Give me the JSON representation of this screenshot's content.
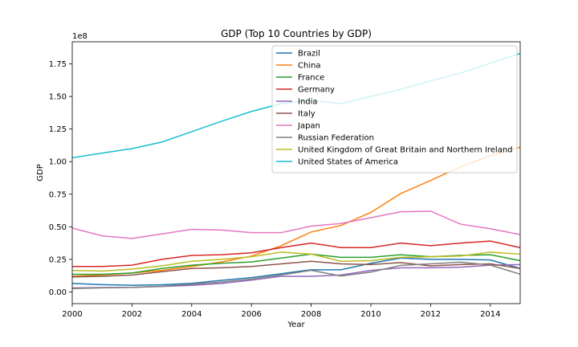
{
  "chart_data": {
    "type": "line",
    "title": "GDP (Top 10 Countries by GDP)",
    "xlabel": "Year",
    "ylabel": "GDP",
    "y_offset_text": "1e8",
    "xlim": [
      2000,
      2015
    ],
    "ylim": [
      -0.09,
      1.92
    ],
    "x_ticks": [
      2000,
      2002,
      2004,
      2006,
      2008,
      2010,
      2012,
      2014
    ],
    "x_tick_labels": [
      "2000",
      "2002",
      "2004",
      "2006",
      "2008",
      "2010",
      "2012",
      "2014"
    ],
    "y_ticks": [
      0.0,
      0.25,
      0.5,
      0.75,
      1.0,
      1.25,
      1.5,
      1.75
    ],
    "y_tick_labels": [
      "0.00",
      "0.25",
      "0.50",
      "0.75",
      "1.00",
      "1.25",
      "1.50",
      "1.75"
    ],
    "grid": false,
    "legend_position": "top-right",
    "x": [
      2000,
      2001,
      2002,
      2003,
      2004,
      2005,
      2006,
      2007,
      2008,
      2009,
      2010,
      2011,
      2012,
      2013,
      2014,
      2015
    ],
    "series": [
      {
        "name": "Brazil",
        "color": "#1f77b4",
        "values": [
          0.065,
          0.056,
          0.051,
          0.055,
          0.066,
          0.089,
          0.11,
          0.14,
          0.17,
          0.17,
          0.22,
          0.26,
          0.25,
          0.25,
          0.245,
          0.18
        ]
      },
      {
        "name": "China",
        "color": "#ff7f0e",
        "values": [
          0.12,
          0.13,
          0.145,
          0.165,
          0.195,
          0.23,
          0.275,
          0.355,
          0.46,
          0.51,
          0.61,
          0.755,
          0.855,
          0.96,
          1.045,
          1.11
        ]
      },
      {
        "name": "France",
        "color": "#2ca02c",
        "values": [
          0.135,
          0.135,
          0.145,
          0.18,
          0.205,
          0.22,
          0.23,
          0.26,
          0.29,
          0.265,
          0.265,
          0.285,
          0.27,
          0.28,
          0.285,
          0.24
        ]
      },
      {
        "name": "Germany",
        "color": "#d62728",
        "values": [
          0.195,
          0.195,
          0.205,
          0.25,
          0.28,
          0.285,
          0.3,
          0.34,
          0.375,
          0.34,
          0.34,
          0.375,
          0.355,
          0.375,
          0.39,
          0.34
        ]
      },
      {
        "name": "India",
        "color": "#9467bd",
        "values": [
          0.03,
          0.033,
          0.035,
          0.042,
          0.05,
          0.065,
          0.09,
          0.12,
          0.12,
          0.13,
          0.165,
          0.185,
          0.185,
          0.19,
          0.205,
          0.21
        ]
      },
      {
        "name": "Italy",
        "color": "#8c564b",
        "values": [
          0.115,
          0.12,
          0.13,
          0.155,
          0.18,
          0.185,
          0.195,
          0.215,
          0.235,
          0.215,
          0.21,
          0.225,
          0.2,
          0.21,
          0.215,
          0.18
        ]
      },
      {
        "name": "Japan",
        "color": "#e377c2",
        "values": [
          0.49,
          0.43,
          0.41,
          0.445,
          0.48,
          0.475,
          0.455,
          0.455,
          0.505,
          0.525,
          0.57,
          0.615,
          0.62,
          0.52,
          0.485,
          0.44
        ]
      },
      {
        "name": "Russian Federation",
        "color": "#7f7f7f",
        "values": [
          0.026,
          0.031,
          0.035,
          0.043,
          0.059,
          0.076,
          0.099,
          0.13,
          0.166,
          0.122,
          0.152,
          0.204,
          0.215,
          0.228,
          0.206,
          0.136
        ]
      },
      {
        "name": "United Kingdom of Great Britain and Northern Ireland",
        "color": "#bcbd22",
        "values": [
          0.165,
          0.16,
          0.175,
          0.2,
          0.235,
          0.25,
          0.27,
          0.305,
          0.29,
          0.235,
          0.24,
          0.265,
          0.27,
          0.275,
          0.305,
          0.29
        ]
      },
      {
        "name": "United States of America",
        "color": "#17becf",
        "values": [
          1.03,
          1.065,
          1.1,
          1.15,
          1.23,
          1.31,
          1.385,
          1.445,
          1.47,
          1.445,
          1.5,
          1.555,
          1.62,
          1.68,
          1.755,
          1.83
        ]
      }
    ]
  }
}
